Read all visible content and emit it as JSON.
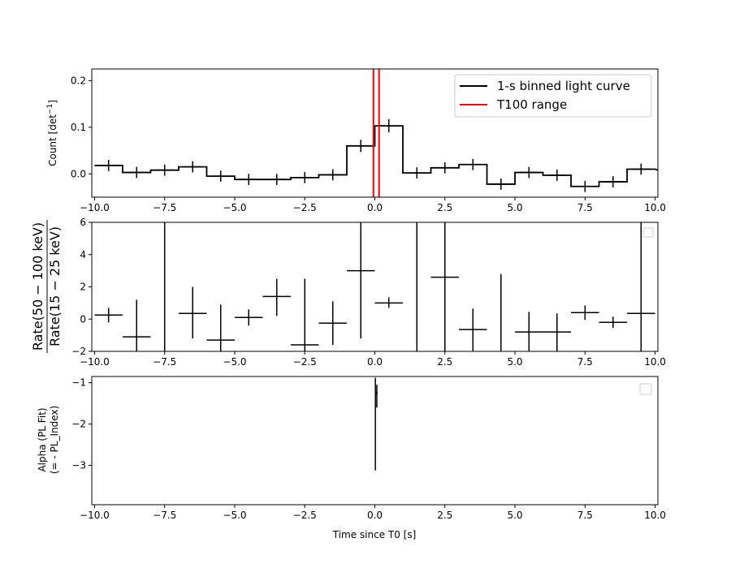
{
  "chart_data": [
    {
      "type": "line",
      "style": "step",
      "xlim": [
        -10.1,
        10.1
      ],
      "ylim": [
        -0.05,
        0.225
      ],
      "xticks": [
        "−10.0",
        "−7.5",
        "−5.0",
        "−2.5",
        "0.0",
        "2.5",
        "5.0",
        "7.5",
        "10.0"
      ],
      "xtick_values": [
        -10,
        -7.5,
        -5,
        -2.5,
        0,
        2.5,
        5,
        7.5,
        10
      ],
      "yticks": [
        "0.0",
        "0.1",
        "0.2"
      ],
      "ytick_values": [
        0,
        0.1,
        0.2
      ],
      "ylabel": "Count [det",
      "ylabel_sup": "−1",
      "ylabel_end": "]",
      "series": [
        {
          "name": "1-s binned light curve",
          "color": "#000000",
          "x": [
            -9.5,
            -8.5,
            -7.5,
            -6.5,
            -5.5,
            -4.5,
            -3.5,
            -2.5,
            -1.5,
            -0.5,
            0.5,
            1.5,
            2.5,
            3.5,
            4.5,
            5.5,
            6.5,
            7.5,
            8.5,
            9.5
          ],
          "y": [
            0.018,
            0.003,
            0.008,
            0.015,
            -0.005,
            -0.012,
            -0.012,
            -0.008,
            -0.002,
            0.06,
            0.103,
            0.002,
            0.013,
            0.02,
            -0.022,
            0.003,
            -0.003,
            -0.027,
            -0.017,
            0.01
          ],
          "yerr": [
            0.012,
            0.012,
            0.012,
            0.012,
            0.012,
            0.012,
            0.012,
            0.012,
            0.012,
            0.013,
            0.014,
            0.012,
            0.012,
            0.012,
            0.012,
            0.012,
            0.012,
            0.012,
            0.012,
            0.012
          ],
          "tail": {
            "x": 10.1,
            "y": 0.008
          }
        }
      ],
      "vlines": {
        "name": "T100 range",
        "color": "#ff0000",
        "x": [
          -0.05,
          0.15
        ]
      },
      "legend": "upper right"
    },
    {
      "type": "scatter",
      "style": "errorbar",
      "xlim": [
        -10.1,
        10.1
      ],
      "ylim": [
        -2,
        6
      ],
      "xticks": [
        "−10.0",
        "−7.5",
        "−5.0",
        "−2.5",
        "0.0",
        "2.5",
        "5.0",
        "7.5",
        "10.0"
      ],
      "xtick_values": [
        -10,
        -7.5,
        -5,
        -2.5,
        0,
        2.5,
        5,
        7.5,
        10
      ],
      "yticks": [
        "−2",
        "0",
        "2",
        "4",
        "6"
      ],
      "ytick_values": [
        -2,
        0,
        2,
        4,
        6
      ],
      "ylabel_num": "Rate(50 − 100 keV)",
      "ylabel_den": "Rate(15 − 25 keV)",
      "points": [
        {
          "x": -9.5,
          "y": 0.25,
          "xerr": 0.5,
          "ylo": -0.2,
          "yhi": 0.7
        },
        {
          "x": -8.5,
          "y": -1.1,
          "xerr": 0.5,
          "ylo": -2.2,
          "yhi": 1.2
        },
        {
          "x": -7.5,
          "y": null,
          "xerr": null,
          "ylo": -2.2,
          "yhi": 6.2
        },
        {
          "x": -6.5,
          "y": 0.35,
          "xerr": 0.5,
          "ylo": -1.2,
          "yhi": 2.0
        },
        {
          "x": -5.5,
          "y": -1.3,
          "xerr": 0.5,
          "ylo": -2.2,
          "yhi": 0.9
        },
        {
          "x": -4.5,
          "y": 0.1,
          "xerr": 0.5,
          "ylo": -0.4,
          "yhi": 0.6
        },
        {
          "x": -3.5,
          "y": 1.4,
          "xerr": 0.5,
          "ylo": 0.2,
          "yhi": 2.5
        },
        {
          "x": -2.5,
          "y": -1.6,
          "xerr": 0.5,
          "ylo": -2.2,
          "yhi": 2.5
        },
        {
          "x": -1.5,
          "y": -0.25,
          "xerr": 0.5,
          "ylo": -1.6,
          "yhi": 1.1
        },
        {
          "x": -0.5,
          "y": 3.0,
          "xerr": 0.5,
          "ylo": -1.2,
          "yhi": 6.2
        },
        {
          "x": 0.5,
          "y": 1.0,
          "xerr": 0.5,
          "ylo": 0.7,
          "yhi": 1.35
        },
        {
          "x": 1.5,
          "y": null,
          "xerr": null,
          "ylo": -2.2,
          "yhi": 6.2
        },
        {
          "x": 2.5,
          "y": 2.6,
          "xerr": 0.5,
          "ylo": -2.2,
          "yhi": 6.2
        },
        {
          "x": 3.5,
          "y": -0.65,
          "xerr": 0.5,
          "ylo": -2.0,
          "yhi": 0.65
        },
        {
          "x": 4.5,
          "y": null,
          "xerr": null,
          "ylo": -2.2,
          "yhi": 2.8
        },
        {
          "x": 5.5,
          "y": -0.8,
          "xerr": 0.5,
          "ylo": -2.2,
          "yhi": 0.45
        },
        {
          "x": 6.5,
          "y": -0.8,
          "xerr": 0.5,
          "ylo": -2.2,
          "yhi": 0.35
        },
        {
          "x": 7.5,
          "y": 0.4,
          "xerr": 0.5,
          "ylo": -0.05,
          "yhi": 0.85
        },
        {
          "x": 8.5,
          "y": -0.2,
          "xerr": 0.5,
          "ylo": -0.55,
          "yhi": 0.15
        },
        {
          "x": 9.5,
          "y": 0.35,
          "xerr": 0.5,
          "ylo": -2.2,
          "yhi": 6.2
        }
      ],
      "legend": "upper right (empty)"
    },
    {
      "type": "scatter",
      "style": "errorbar",
      "xlim": [
        -10.1,
        10.1
      ],
      "ylim": [
        -3.95,
        -0.85
      ],
      "xticks": [
        "−10.0",
        "−7.5",
        "−5.0",
        "−2.5",
        "0.0",
        "2.5",
        "5.0",
        "7.5",
        "10.0"
      ],
      "xtick_values": [
        -10,
        -7.5,
        -5,
        -2.5,
        0,
        2.5,
        5,
        7.5,
        10
      ],
      "yticks": [
        "−1",
        "−2",
        "−3"
      ],
      "ytick_values": [
        -1,
        -2,
        -3
      ],
      "xlabel": "Time since T0 [s]",
      "ylabel_line1": "Alpha (PL Fit)",
      "ylabel_line2": "(= - PL_Index)",
      "points": [
        {
          "x": 0.02,
          "y": -1.3,
          "xerr": 0.02,
          "ylo": -3.12,
          "yhi": -0.88
        },
        {
          "x": 0.07,
          "y": -1.25,
          "xerr": 0.03,
          "ylo": -1.6,
          "yhi": -1.05
        }
      ],
      "legend": "upper right (empty)"
    }
  ]
}
